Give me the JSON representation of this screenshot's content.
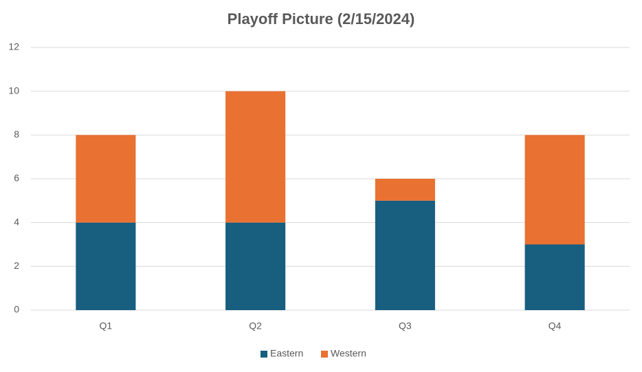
{
  "chart_data": {
    "type": "bar",
    "stacked": true,
    "title": "Playoff Picture (2/15/2024)",
    "categories": [
      "Q1",
      "Q2",
      "Q3",
      "Q4"
    ],
    "series": [
      {
        "name": "Eastern",
        "color": "#175e7f",
        "values": [
          4,
          4,
          5,
          3
        ]
      },
      {
        "name": "Western",
        "color": "#e97132",
        "values": [
          4,
          6,
          1,
          5
        ]
      }
    ],
    "ylim": [
      0,
      12
    ],
    "yticks": [
      0,
      2,
      4,
      6,
      8,
      10,
      12
    ],
    "grid": true,
    "legend": "bottom"
  }
}
